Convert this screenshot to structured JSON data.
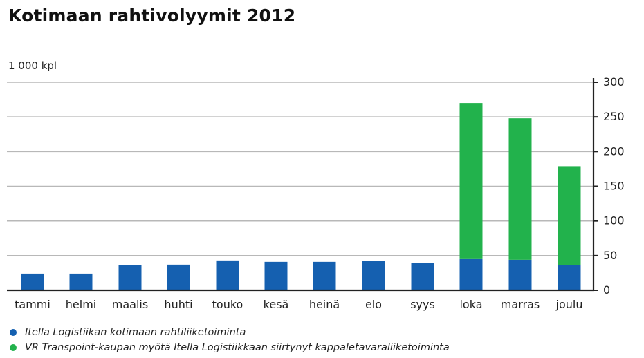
{
  "chart_data": {
    "type": "bar",
    "stacked": true,
    "title": "Kotimaan rahtivolyymit 2012",
    "unit_label": "1 000 kpl",
    "categories": [
      "tammi",
      "helmi",
      "maalis",
      "huhti",
      "touko",
      "kesä",
      "heinä",
      "elo",
      "syys",
      "loka",
      "marras",
      "joulu"
    ],
    "series": [
      {
        "name": "Itella Logistiikan kotimaan rahtiliiketoiminta",
        "color": "#1560b0",
        "values": [
          24,
          24,
          36,
          37,
          43,
          41,
          41,
          42,
          39,
          45,
          44,
          36
        ]
      },
      {
        "name": "VR Transpoint-kaupan myötä Itella Logistiikkaan siirtynyt kappaletavaraliiketoiminta",
        "color": "#22b24c",
        "values": [
          0,
          0,
          0,
          0,
          0,
          0,
          0,
          0,
          0,
          225,
          204,
          143
        ]
      }
    ],
    "ylim": [
      0,
      300
    ],
    "yticks": [
      0,
      50,
      100,
      150,
      200,
      250,
      300
    ],
    "yaxis_position": "right",
    "grid": true,
    "legend_position": "bottom"
  }
}
